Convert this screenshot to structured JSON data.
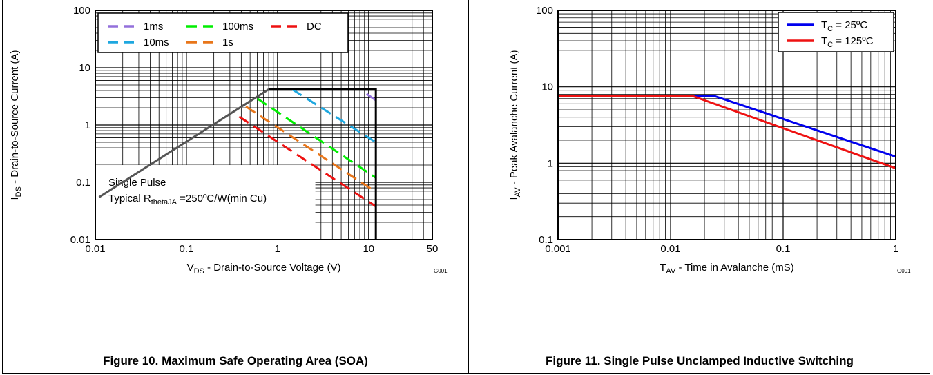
{
  "captions": {
    "left": "Figure 10. Maximum Safe Operating Area (SOA)",
    "right": "Figure 11. Single Pulse Unclamped Inductive Switching"
  },
  "chart_data": [
    {
      "type": "line",
      "x_scale": "log",
      "y_scale": "log",
      "xlim": [
        0.01,
        50
      ],
      "ylim": [
        0.01,
        100
      ],
      "x_ticks": [
        "0.01",
        "0.1",
        "1",
        "10",
        "50"
      ],
      "y_ticks": [
        "0.01",
        "0.1",
        "1",
        "10",
        "100"
      ],
      "xlabel": {
        "main": "V",
        "sub": "DS",
        "rest": " - Drain-to-Source Voltage (V)"
      },
      "ylabel": {
        "main": "I",
        "sub": "DS",
        "rest": " - Drain-to-Source Current (A)"
      },
      "figure_id": "G001",
      "annotation": {
        "line1": "Single Pulse",
        "line2_prefix": "Typical R",
        "line2_sub": "thetaJA",
        "line2_rest": " =250ºC/W(min Cu)"
      },
      "grid": true,
      "legend_position": "top-left",
      "series": [
        {
          "name": "1ms",
          "color": "#9370db",
          "dash": true,
          "x": [
            9.5,
            12
          ],
          "y": [
            3.5,
            2.7
          ]
        },
        {
          "name": "10ms",
          "color": "#1ea7df",
          "dash": true,
          "x": [
            1.45,
            12
          ],
          "y": [
            4.2,
            0.5
          ]
        },
        {
          "name": "100ms",
          "color": "#00ee00",
          "dash": true,
          "x": [
            0.6,
            12
          ],
          "y": [
            2.9,
            0.12
          ]
        },
        {
          "name": "1s",
          "color": "#e8761a",
          "dash": true,
          "x": [
            0.45,
            12
          ],
          "y": [
            2.1,
            0.068
          ]
        },
        {
          "name": "DC",
          "color": "#ee1111",
          "dash": true,
          "x": [
            0.38,
            12
          ],
          "y": [
            1.4,
            0.038
          ]
        },
        {
          "name": "",
          "color": "#555555",
          "dash": false,
          "x": [
            0.011,
            0.8
          ],
          "y": [
            0.055,
            4.2
          ]
        },
        {
          "name": "",
          "color": "#000000",
          "dash": false,
          "x": [
            0.8,
            12,
            12
          ],
          "y": [
            4.2,
            4.2,
            0.01
          ]
        }
      ]
    },
    {
      "type": "line",
      "x_scale": "log",
      "y_scale": "log",
      "xlim": [
        0.001,
        1
      ],
      "ylim": [
        0.1,
        100
      ],
      "x_ticks": [
        "0.001",
        "0.01",
        "0.1",
        "1"
      ],
      "y_ticks": [
        "0.1",
        "1",
        "10",
        "100"
      ],
      "xlabel": {
        "main": "T",
        "sub": "AV",
        "rest": " - Time in Avalanche (mS)"
      },
      "ylabel": {
        "main": "I",
        "sub": "AV",
        "rest": " - Peak Avalanche Current (A)"
      },
      "figure_id": "G001",
      "grid": true,
      "legend_position": "top-right",
      "series": [
        {
          "name_main": "T",
          "name_sub": "C",
          "name_rest": " = 25ºC",
          "color": "#0000ee",
          "x": [
            0.001,
            0.025,
            1
          ],
          "y": [
            7.5,
            7.5,
            1.22
          ]
        },
        {
          "name_main": "T",
          "name_sub": "C",
          "name_rest": " = 125ºC",
          "color": "#ee1111",
          "x": [
            0.001,
            0.016,
            1
          ],
          "y": [
            7.5,
            7.5,
            0.86
          ]
        }
      ]
    }
  ]
}
